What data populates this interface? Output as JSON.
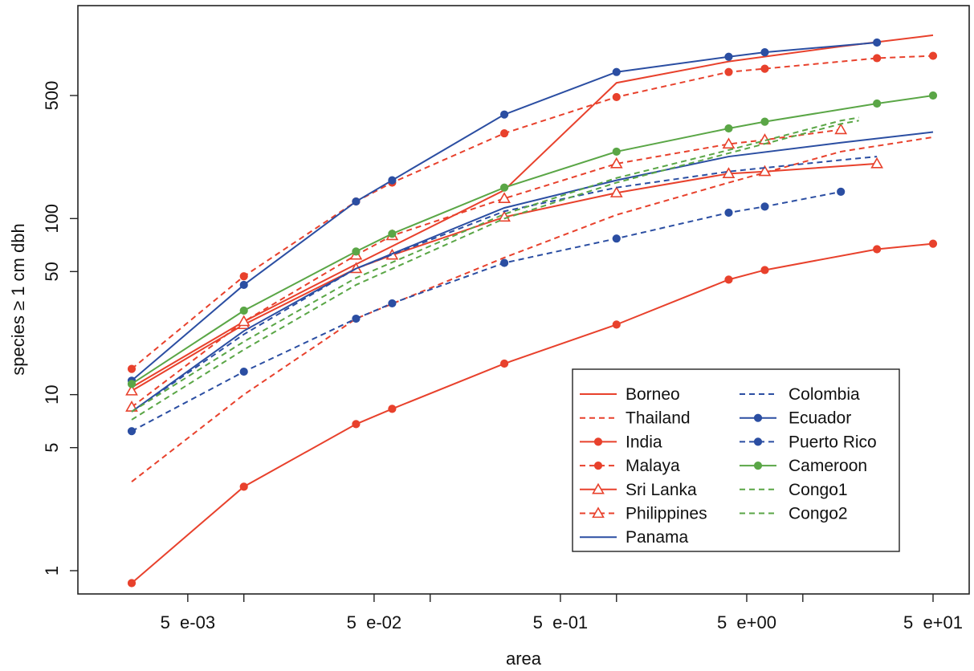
{
  "chart_data": {
    "type": "line",
    "xlabel": "area",
    "ylabel": "species ≥ 1 cm dbh",
    "x_scale": "log",
    "y_scale": "log",
    "xlim": [
      0.0015,
      80
    ],
    "ylim": [
      0.8,
      1500
    ],
    "x_ticks": [
      {
        "value": 0.005,
        "label": "5  e-03"
      },
      {
        "value": 0.05,
        "label": "5  e-02"
      },
      {
        "value": 0.5,
        "label": "5  e-01"
      },
      {
        "value": 5,
        "label": "5  e+00"
      },
      {
        "value": 50,
        "label": "5  e+01"
      }
    ],
    "x_minor_ticks": [
      0.01,
      0.1,
      1,
      10
    ],
    "y_ticks": [
      {
        "value": 1,
        "label": "1"
      },
      {
        "value": 5,
        "label": "5"
      },
      {
        "value": 10,
        "label": "10"
      },
      {
        "value": 50,
        "label": "50"
      },
      {
        "value": 100,
        "label": "100"
      },
      {
        "value": 500,
        "label": "500"
      }
    ],
    "legend_position": "bottom-right",
    "series": [
      {
        "name": "Borneo",
        "color": "#e8412c",
        "dash": "solid",
        "marker": "none",
        "points": [
          [
            0.0025,
            11
          ],
          [
            0.01,
            26
          ],
          [
            0.04,
            55
          ],
          [
            0.25,
            145
          ],
          [
            1,
            590
          ],
          [
            4,
            780
          ],
          [
            16,
            950
          ],
          [
            50,
            1100
          ]
        ]
      },
      {
        "name": "Thailand",
        "color": "#e8412c",
        "dash": "dashed",
        "marker": "none",
        "points": [
          [
            0.0025,
            3.2
          ],
          [
            0.01,
            10
          ],
          [
            0.04,
            27
          ],
          [
            0.25,
            60
          ],
          [
            1,
            105
          ],
          [
            4,
            160
          ],
          [
            16,
            240
          ],
          [
            50,
            290
          ]
        ]
      },
      {
        "name": "India",
        "color": "#e8412c",
        "dash": "solid",
        "marker": "dot",
        "points": [
          [
            0.0025,
            0.85
          ],
          [
            0.01,
            3
          ],
          [
            0.04,
            6.8
          ],
          [
            0.0625,
            8.3
          ],
          [
            0.25,
            15
          ],
          [
            1,
            25
          ],
          [
            4,
            45
          ],
          [
            6.25,
            51
          ],
          [
            25,
            67
          ],
          [
            50,
            72
          ]
        ]
      },
      {
        "name": "Malaya",
        "color": "#e8412c",
        "dash": "dashed",
        "marker": "dot",
        "points": [
          [
            0.0025,
            14
          ],
          [
            0.01,
            47
          ],
          [
            0.04,
            125
          ],
          [
            0.0625,
            160
          ],
          [
            0.25,
            305
          ],
          [
            1,
            490
          ],
          [
            4,
            680
          ],
          [
            6.25,
            710
          ],
          [
            25,
            815
          ],
          [
            50,
            840
          ]
        ]
      },
      {
        "name": "Sri Lanka",
        "color": "#e8412c",
        "dash": "solid",
        "marker": "triangle",
        "points": [
          [
            0.0025,
            10.5
          ],
          [
            0.01,
            25
          ],
          [
            0.04,
            52
          ],
          [
            0.0625,
            62
          ],
          [
            0.25,
            102
          ],
          [
            1,
            140
          ],
          [
            4,
            180
          ],
          [
            6.25,
            185
          ],
          [
            25,
            205
          ]
        ]
      },
      {
        "name": "Philippines",
        "color": "#e8412c",
        "dash": "dashed",
        "marker": "triangle",
        "points": [
          [
            0.0025,
            8.5
          ],
          [
            0.01,
            26
          ],
          [
            0.04,
            62
          ],
          [
            0.0625,
            80
          ],
          [
            0.25,
            130
          ],
          [
            1,
            205
          ],
          [
            4,
            265
          ],
          [
            6.25,
            280
          ],
          [
            16,
            320
          ]
        ]
      },
      {
        "name": "Panama",
        "color": "#2b4ea2",
        "dash": "solid",
        "marker": "none",
        "points": [
          [
            0.0025,
            8
          ],
          [
            0.01,
            23
          ],
          [
            0.04,
            52
          ],
          [
            0.25,
            115
          ],
          [
            1,
            165
          ],
          [
            4,
            225
          ],
          [
            16,
            270
          ],
          [
            50,
            310
          ]
        ]
      },
      {
        "name": "Colombia",
        "color": "#2b4ea2",
        "dash": "dashed",
        "marker": "none",
        "points": [
          [
            0.0025,
            8
          ],
          [
            0.01,
            22
          ],
          [
            0.04,
            52
          ],
          [
            0.25,
            110
          ],
          [
            1,
            150
          ],
          [
            4,
            185
          ],
          [
            16,
            215
          ],
          [
            25,
            225
          ]
        ]
      },
      {
        "name": "Ecuador",
        "color": "#2b4ea2",
        "dash": "solid",
        "marker": "dot",
        "points": [
          [
            0.0025,
            12
          ],
          [
            0.01,
            42
          ],
          [
            0.04,
            125
          ],
          [
            0.0625,
            165
          ],
          [
            0.25,
            390
          ],
          [
            1,
            680
          ],
          [
            4,
            830
          ],
          [
            6.25,
            880
          ],
          [
            25,
            1000
          ]
        ]
      },
      {
        "name": "Puerto Rico",
        "color": "#2b4ea2",
        "dash": "dashed",
        "marker": "dot",
        "points": [
          [
            0.0025,
            6.2
          ],
          [
            0.01,
            13.5
          ],
          [
            0.04,
            27
          ],
          [
            0.0625,
            33
          ],
          [
            0.25,
            56
          ],
          [
            1,
            77
          ],
          [
            4,
            108
          ],
          [
            6.25,
            117
          ],
          [
            16,
            142
          ]
        ]
      },
      {
        "name": "Cameroon",
        "color": "#5aa646",
        "dash": "solid",
        "marker": "dot",
        "points": [
          [
            0.0025,
            11.5
          ],
          [
            0.01,
            30
          ],
          [
            0.04,
            65
          ],
          [
            0.0625,
            82
          ],
          [
            0.25,
            150
          ],
          [
            1,
            240
          ],
          [
            4,
            325
          ],
          [
            6.25,
            355
          ],
          [
            25,
            450
          ],
          [
            50,
            500
          ]
        ]
      },
      {
        "name": "Congo1",
        "color": "#5aa646",
        "dash": "dashed",
        "marker": "none",
        "points": [
          [
            0.0025,
            8
          ],
          [
            0.01,
            20
          ],
          [
            0.04,
            46
          ],
          [
            0.25,
            106
          ],
          [
            1,
            170
          ],
          [
            4,
            245
          ],
          [
            16,
            360
          ],
          [
            20,
            375
          ]
        ]
      },
      {
        "name": "Congo2",
        "color": "#5aa646",
        "dash": "dashed",
        "marker": "none",
        "points": [
          [
            0.0025,
            7.2
          ],
          [
            0.01,
            18
          ],
          [
            0.04,
            42
          ],
          [
            0.25,
            100
          ],
          [
            1,
            160
          ],
          [
            4,
            235
          ],
          [
            16,
            345
          ],
          [
            20,
            360
          ]
        ]
      }
    ]
  }
}
